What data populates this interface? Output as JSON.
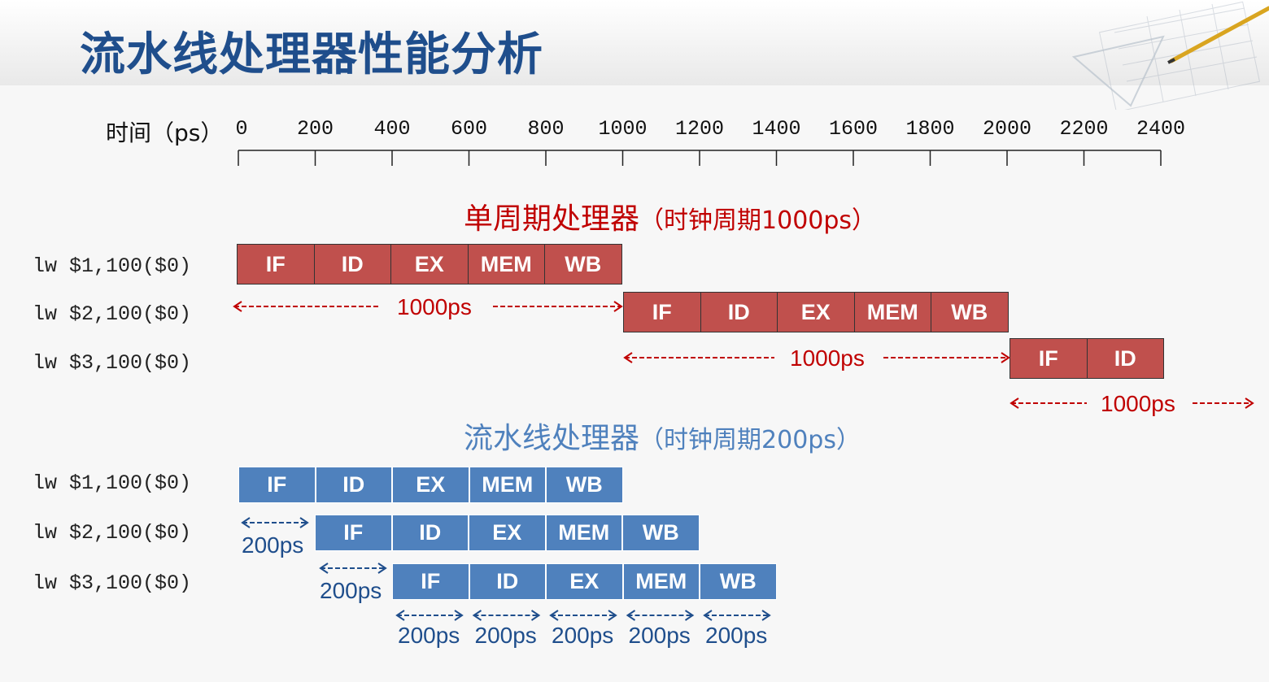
{
  "page": {
    "title": "流水线处理器性能分析"
  },
  "timeline": {
    "label": "时间（ps）",
    "ticks": [
      "0",
      "200",
      "400",
      "600",
      "800",
      "1000",
      "1200",
      "1400",
      "1600",
      "1800",
      "2000",
      "2200",
      "2400"
    ]
  },
  "single_cycle": {
    "title": "单周期处理器",
    "subtitle": "（时钟周期1000ps）",
    "color": "#c0504d",
    "instructions": [
      {
        "text": "lw $1,100($0)",
        "stages": [
          "IF",
          "ID",
          "EX",
          "MEM",
          "WB"
        ]
      },
      {
        "text": "lw $2,100($0)",
        "stages": [
          "IF",
          "ID",
          "EX",
          "MEM",
          "WB"
        ]
      },
      {
        "text": "lw $3,100($0)",
        "stages": [
          "IF",
          "ID"
        ]
      }
    ],
    "interval_label": "1000ps"
  },
  "pipelined": {
    "title": "流水线处理器",
    "subtitle": "（时钟周期200ps）",
    "color": "#4f81bd",
    "instructions": [
      {
        "text": "lw $1,100($0)",
        "stages": [
          "IF",
          "ID",
          "EX",
          "MEM",
          "WB"
        ]
      },
      {
        "text": "lw $2,100($0)",
        "stages": [
          "IF",
          "ID",
          "EX",
          "MEM",
          "WB"
        ]
      },
      {
        "text": "lw $3,100($0)",
        "stages": [
          "IF",
          "ID",
          "EX",
          "MEM",
          "WB"
        ]
      }
    ],
    "interval_label": "200ps"
  }
}
